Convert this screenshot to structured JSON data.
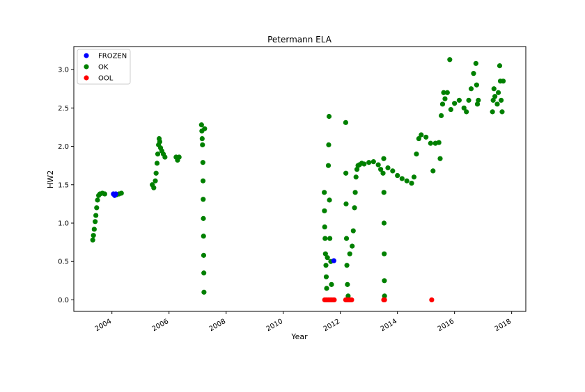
{
  "chart_data": {
    "type": "scatter",
    "title": "Petermann ELA",
    "xlabel": "Year",
    "ylabel": "HW2",
    "xlim": [
      "2002-09-01",
      "2018-07-01"
    ],
    "ylim": [
      -0.15,
      3.3
    ],
    "x_ticks": [
      "2004",
      "2006",
      "2008",
      "2010",
      "2012",
      "2014",
      "2016",
      "2018"
    ],
    "y_ticks": [
      0.0,
      0.5,
      1.0,
      1.5,
      2.0,
      2.5,
      3.0
    ],
    "y_tick_labels": [
      "0.0",
      "0.5",
      "1.0",
      "1.5",
      "2.0",
      "2.5",
      "3.0"
    ],
    "legend": {
      "placement": "upper-left"
    },
    "series": [
      {
        "name": "FROZEN",
        "color": "#0000ff",
        "points": [
          [
            "2004-01-20",
            1.38
          ],
          [
            "2004-02-05",
            1.36
          ],
          [
            "2004-02-20",
            1.38
          ],
          [
            "2011-10-10",
            0.51
          ]
        ]
      },
      {
        "name": "OK",
        "color": "#008000",
        "points": [
          [
            "2003-05-01",
            0.78
          ],
          [
            "2003-05-10",
            0.84
          ],
          [
            "2003-05-20",
            0.92
          ],
          [
            "2003-06-01",
            1.02
          ],
          [
            "2003-06-10",
            1.1
          ],
          [
            "2003-06-20",
            1.2
          ],
          [
            "2003-07-01",
            1.3
          ],
          [
            "2003-07-15",
            1.36
          ],
          [
            "2003-08-01",
            1.38
          ],
          [
            "2003-09-01",
            1.39
          ],
          [
            "2003-10-01",
            1.38
          ],
          [
            "2004-03-01",
            1.37
          ],
          [
            "2004-04-01",
            1.38
          ],
          [
            "2004-05-01",
            1.39
          ],
          [
            "2005-06-01",
            1.5
          ],
          [
            "2005-06-20",
            1.46
          ],
          [
            "2005-07-10",
            1.55
          ],
          [
            "2005-07-20",
            1.65
          ],
          [
            "2005-08-01",
            1.78
          ],
          [
            "2005-08-10",
            1.9
          ],
          [
            "2005-08-20",
            2.02
          ],
          [
            "2005-08-28",
            2.1
          ],
          [
            "2005-09-05",
            2.06
          ],
          [
            "2005-09-15",
            1.98
          ],
          [
            "2005-10-01",
            1.94
          ],
          [
            "2005-10-20",
            1.9
          ],
          [
            "2005-11-10",
            1.86
          ],
          [
            "2006-04-01",
            1.86
          ],
          [
            "2006-04-20",
            1.82
          ],
          [
            "2006-05-10",
            1.86
          ],
          [
            "2007-02-20",
            2.28
          ],
          [
            "2007-02-25",
            2.2
          ],
          [
            "2007-03-01",
            2.1
          ],
          [
            "2007-03-05",
            2.02
          ],
          [
            "2007-03-10",
            1.79
          ],
          [
            "2007-03-12",
            1.55
          ],
          [
            "2007-03-14",
            1.31
          ],
          [
            "2007-03-16",
            1.06
          ],
          [
            "2007-03-18",
            0.83
          ],
          [
            "2007-03-20",
            0.58
          ],
          [
            "2007-03-22",
            0.35
          ],
          [
            "2007-03-24",
            0.1
          ],
          [
            "2007-04-01",
            2.23
          ],
          [
            "2011-06-10",
            1.4
          ],
          [
            "2011-06-12",
            1.16
          ],
          [
            "2011-06-15",
            0.95
          ],
          [
            "2011-06-20",
            0.8
          ],
          [
            "2011-06-25",
            0.6
          ],
          [
            "2011-07-01",
            0.45
          ],
          [
            "2011-07-05",
            0.3
          ],
          [
            "2011-07-10",
            0.15
          ],
          [
            "2011-07-20",
            0.55
          ],
          [
            "2011-08-01",
            1.75
          ],
          [
            "2011-08-05",
            2.02
          ],
          [
            "2011-08-10",
            2.39
          ],
          [
            "2011-08-15",
            1.3
          ],
          [
            "2011-08-20",
            0.8
          ],
          [
            "2011-09-01",
            0.5
          ],
          [
            "2011-09-10",
            0.2
          ],
          [
            "2012-03-10",
            2.31
          ],
          [
            "2012-03-12",
            1.65
          ],
          [
            "2012-03-15",
            1.25
          ],
          [
            "2012-03-20",
            0.8
          ],
          [
            "2012-03-25",
            0.45
          ],
          [
            "2012-04-01",
            0.2
          ],
          [
            "2012-04-10",
            0.05
          ],
          [
            "2012-05-01",
            0.6
          ],
          [
            "2012-06-01",
            0.7
          ],
          [
            "2012-06-15",
            0.9
          ],
          [
            "2012-07-01",
            1.2
          ],
          [
            "2012-07-10",
            1.4
          ],
          [
            "2012-07-20",
            1.6
          ],
          [
            "2012-08-01",
            1.7
          ],
          [
            "2012-08-15",
            1.75
          ],
          [
            "2012-09-01",
            1.76
          ],
          [
            "2012-10-01",
            1.78
          ],
          [
            "2012-11-01",
            1.77
          ],
          [
            "2013-01-01",
            1.79
          ],
          [
            "2013-03-01",
            1.8
          ],
          [
            "2013-05-01",
            1.76
          ],
          [
            "2013-06-01",
            1.7
          ],
          [
            "2013-07-01",
            1.65
          ],
          [
            "2013-07-10",
            1.84
          ],
          [
            "2013-07-12",
            1.4
          ],
          [
            "2013-07-14",
            1.0
          ],
          [
            "2013-07-16",
            0.6
          ],
          [
            "2013-07-18",
            0.25
          ],
          [
            "2013-07-20",
            0.05
          ],
          [
            "2013-09-01",
            1.72
          ],
          [
            "2013-11-01",
            1.68
          ],
          [
            "2014-01-01",
            1.62
          ],
          [
            "2014-03-01",
            1.58
          ],
          [
            "2014-05-01",
            1.55
          ],
          [
            "2014-07-01",
            1.52
          ],
          [
            "2014-08-01",
            1.6
          ],
          [
            "2014-09-01",
            1.9
          ],
          [
            "2014-10-01",
            2.1
          ],
          [
            "2014-11-01",
            2.15
          ],
          [
            "2015-01-01",
            2.12
          ],
          [
            "2015-03-01",
            2.04
          ],
          [
            "2015-04-01",
            1.68
          ],
          [
            "2015-05-01",
            2.04
          ],
          [
            "2015-06-15",
            2.05
          ],
          [
            "2015-07-01",
            1.84
          ],
          [
            "2015-07-15",
            2.4
          ],
          [
            "2015-08-01",
            2.55
          ],
          [
            "2015-08-15",
            2.7
          ],
          [
            "2015-09-01",
            2.62
          ],
          [
            "2015-10-01",
            2.7
          ],
          [
            "2015-11-01",
            3.13
          ],
          [
            "2015-11-15",
            2.48
          ],
          [
            "2016-01-01",
            2.56
          ],
          [
            "2016-03-01",
            2.6
          ],
          [
            "2016-05-01",
            2.5
          ],
          [
            "2016-06-01",
            2.45
          ],
          [
            "2016-07-01",
            2.6
          ],
          [
            "2016-08-01",
            2.75
          ],
          [
            "2016-09-01",
            2.95
          ],
          [
            "2016-10-01",
            3.08
          ],
          [
            "2016-10-10",
            2.8
          ],
          [
            "2016-10-20",
            2.55
          ],
          [
            "2016-11-01",
            2.6
          ],
          [
            "2017-05-01",
            2.45
          ],
          [
            "2017-05-10",
            2.6
          ],
          [
            "2017-05-20",
            2.75
          ],
          [
            "2017-06-01",
            2.65
          ],
          [
            "2017-07-01",
            2.55
          ],
          [
            "2017-07-15",
            2.7
          ],
          [
            "2017-08-01",
            3.05
          ],
          [
            "2017-08-10",
            2.85
          ],
          [
            "2017-08-20",
            2.6
          ],
          [
            "2017-09-01",
            2.45
          ],
          [
            "2017-09-15",
            2.85
          ]
        ]
      },
      {
        "name": "OOL",
        "color": "#ff0000",
        "points": [
          [
            "2011-06-15",
            0.0
          ],
          [
            "2011-07-01",
            0.0
          ],
          [
            "2011-07-15",
            0.0
          ],
          [
            "2011-08-01",
            0.0
          ],
          [
            "2011-08-15",
            0.0
          ],
          [
            "2011-09-01",
            0.0
          ],
          [
            "2011-09-15",
            0.0
          ],
          [
            "2011-10-01",
            0.0
          ],
          [
            "2011-10-15",
            0.0
          ],
          [
            "2012-03-10",
            0.0
          ],
          [
            "2012-03-25",
            0.0
          ],
          [
            "2012-04-10",
            0.0
          ],
          [
            "2012-04-25",
            0.0
          ],
          [
            "2012-05-10",
            0.0
          ],
          [
            "2012-05-25",
            0.0
          ],
          [
            "2013-07-10",
            0.0
          ],
          [
            "2013-07-20",
            0.0
          ],
          [
            "2015-03-15",
            0.0
          ]
        ]
      }
    ]
  }
}
